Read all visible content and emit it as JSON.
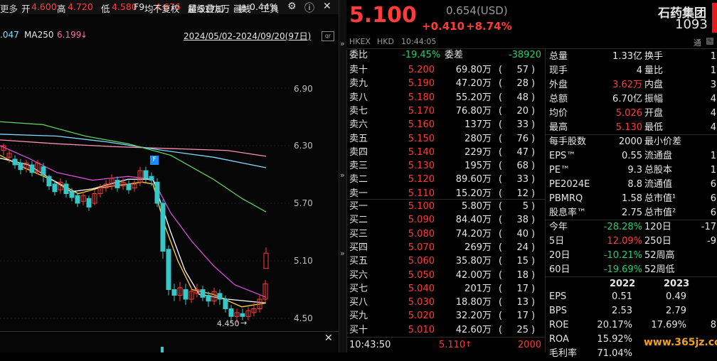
{
  "topbar": {
    "more": "更多",
    "open_label": "开",
    "open": "4.600",
    "high_label": "高",
    "high": "4.720",
    "low_label": "低",
    "low": "4.580",
    "avg_label": "均",
    "avg": "4.676",
    "vol_label": "量",
    "vol": "5176万",
    "turn_label": "换",
    "turn": "0.44%",
    "f9": "F9",
    "adjust": "不复权",
    "overlay": "超级叠加",
    "draw": "画线",
    "tools": "工具"
  },
  "ma": {
    "ma1_value": ".047",
    "ma250_label": "MA250",
    "ma250_value": "6.199",
    "range": "2024/05/02-2024/09/20(97日)"
  },
  "y_ticks": [
    "6.90",
    "6.30",
    "5.70",
    "5.10",
    "4.50"
  ],
  "low_marker": "4.450",
  "f_badge": "F",
  "quote": {
    "price": "5.100",
    "change_usd": "0.654(USD)",
    "change": "+0.410",
    "change_pct": "+8.74%",
    "name": "石药集团",
    "code": "1093",
    "exch1": "HKEX",
    "exch2": "HKD",
    "time": "10:44:05",
    "tong": "通"
  },
  "order_book": {
    "webi_label": "委比",
    "webi": "-19.45%",
    "wecha_label": "委差",
    "wecha": "-38920",
    "asks": [
      {
        "label": "卖十",
        "price": "5.200",
        "vol": "69.80万",
        "cnt": "57"
      },
      {
        "label": "卖九",
        "price": "5.190",
        "vol": "47.20万",
        "cnt": "28"
      },
      {
        "label": "卖八",
        "price": "5.180",
        "vol": "55.20万",
        "cnt": "48"
      },
      {
        "label": "卖七",
        "price": "5.170",
        "vol": "76.80万",
        "cnt": "20"
      },
      {
        "label": "卖六",
        "price": "5.160",
        "vol": "137万",
        "cnt": "33"
      },
      {
        "label": "卖五",
        "price": "5.150",
        "vol": "280万",
        "cnt": "76"
      },
      {
        "label": "卖四",
        "price": "5.140",
        "vol": "229万",
        "cnt": "47"
      },
      {
        "label": "卖三",
        "price": "5.130",
        "vol": "195万",
        "cnt": "68"
      },
      {
        "label": "卖二",
        "price": "5.120",
        "vol": "89.60万",
        "cnt": "33"
      },
      {
        "label": "卖一",
        "price": "5.110",
        "vol": "15.20万",
        "cnt": "12"
      }
    ],
    "bids": [
      {
        "label": "买一",
        "price": "5.100",
        "vol": "5.80万",
        "cnt": "5"
      },
      {
        "label": "买二",
        "price": "5.090",
        "vol": "84.40万",
        "cnt": "38"
      },
      {
        "label": "买三",
        "price": "5.080",
        "vol": "74.20万",
        "cnt": "40"
      },
      {
        "label": "买四",
        "price": "5.070",
        "vol": "269万",
        "cnt": "24"
      },
      {
        "label": "买五",
        "price": "5.060",
        "vol": "35.80万",
        "cnt": "15"
      },
      {
        "label": "买六",
        "price": "5.050",
        "vol": "42.00万",
        "cnt": "18"
      },
      {
        "label": "买七",
        "price": "5.040",
        "vol": "201万",
        "cnt": "17"
      },
      {
        "label": "买八",
        "price": "5.030",
        "vol": "18.80万",
        "cnt": "13"
      },
      {
        "label": "买九",
        "price": "5.020",
        "vol": "32.20万",
        "cnt": "17"
      },
      {
        "label": "买十",
        "price": "5.010",
        "vol": "42.60万",
        "cnt": "25"
      }
    ],
    "last_time": "10:43:50",
    "last_price": "5.110",
    "last_vol": "2000"
  },
  "stats": [
    {
      "l": "总量",
      "v": "1.33亿",
      "vc": "white",
      "l2": "换手",
      "v2": "1"
    },
    {
      "l": "现手",
      "v": "4",
      "vc": "white",
      "l2": "量比",
      "v2": "1"
    },
    {
      "l": "外盘",
      "v": "3.62万",
      "vc": "red",
      "l2": "内盘",
      "v2": "3"
    },
    {
      "l": "总额",
      "v": "6.70亿",
      "vc": "white",
      "l2": "振幅",
      "v2": "4"
    },
    {
      "l": "均价",
      "v": "5.026",
      "vc": "red",
      "l2": "开盘",
      "v2": "4"
    },
    {
      "l": "最高",
      "v": "5.130",
      "vc": "red",
      "l2": "最低",
      "v2": "4"
    },
    {
      "l": "每手股数",
      "v": "2000",
      "vc": "white",
      "l2": "最小价差",
      "v2": ""
    },
    {
      "l": "EPS™",
      "v": "0.55",
      "vc": "white",
      "l2": "流通盘",
      "v2": "1"
    },
    {
      "l": "PE™",
      "v": "9.3",
      "vc": "white",
      "l2": "总股本",
      "v2": "1"
    },
    {
      "l": "PE2024E",
      "v": "8.8",
      "vc": "white",
      "l2": "流通值",
      "v2": "6"
    },
    {
      "l": "PBMRQ",
      "v": "1.58",
      "vc": "white",
      "l2": "总市值¹",
      "v2": "6"
    },
    {
      "l": "股息率™",
      "v": "2.75",
      "vc": "white",
      "l2": "总市值²",
      "v2": "6"
    },
    {
      "l": "今年",
      "v": "-28.28%",
      "vc": "green",
      "l2": "120日",
      "v2": "-17"
    },
    {
      "l": "5日",
      "v": "12.09%",
      "vc": "red",
      "l2": "250日",
      "v2": "-9"
    },
    {
      "l": "20日",
      "v": "-10.21%",
      "vc": "green",
      "l2": "52周高",
      "v2": ""
    },
    {
      "l": "60日",
      "v": "-19.69%",
      "vc": "green",
      "l2": "52周低",
      "v2": ""
    }
  ],
  "fin": {
    "years": [
      "2022",
      "2023",
      "202"
    ],
    "rows": [
      {
        "l": "EPS",
        "a": "0.51",
        "b": "0.49",
        "c": ""
      },
      {
        "l": "BPS",
        "a": "2.53",
        "b": "2.79",
        "c": ""
      },
      {
        "l": "ROE",
        "a": "20.17%",
        "b": "17.69%",
        "c": "8"
      },
      {
        "l": "ROA",
        "a": "15.92%",
        "b": "",
        "c": ""
      },
      {
        "l": "毛利率",
        "a": "71.04%",
        "b": "",
        "c": ""
      }
    ]
  },
  "watermark": "www.365jz.com"
}
